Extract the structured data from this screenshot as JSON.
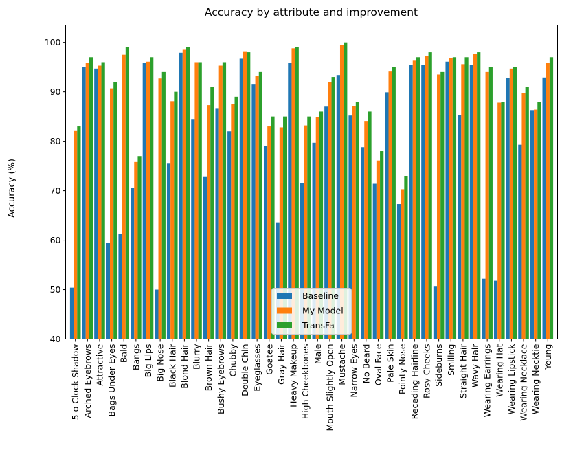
{
  "chart_data": {
    "type": "bar",
    "title": "Accuracy by attribute and improvement",
    "xlabel": "",
    "ylabel": "Accuracy (%)",
    "ylim": [
      40,
      103.5
    ],
    "yticks": [
      40,
      50,
      60,
      70,
      80,
      90,
      100
    ],
    "grid": false,
    "legend": {
      "placement": "lower-center"
    },
    "categories": [
      "5 o Clock Shadow",
      "Arched Eyebrows",
      "Attractive",
      "Bags Under Eyes",
      "Bald",
      "Bangs",
      "Big Lips",
      "Big Nose",
      "Black Hair",
      "Blond Hair",
      "Blurry",
      "Brown Hair",
      "Bushy Eyebrows",
      "Chubby",
      "Double Chin",
      "Eyeglasses",
      "Goatee",
      "Gray Hair",
      "Heavy Makeup",
      "High Cheekbones",
      "Male",
      "Mouth Slightly Open",
      "Mustache",
      "Narrow Eyes",
      "No Beard",
      "Oval Face",
      "Pale Skin",
      "Pointy Nose",
      "Receding Hairline",
      "Rosy Cheeks",
      "Sideburns",
      "Smiling",
      "Straight Hair",
      "Wavy Hair",
      "Wearing Earrings",
      "Wearing Hat",
      "Wearing Lipstick",
      "Wearing Necklace",
      "Wearing Necktie",
      "Young"
    ],
    "series": [
      {
        "name": "Baseline",
        "color": "#1f77b4",
        "values": [
          50.4,
          95.0,
          94.7,
          59.5,
          61.3,
          70.5,
          95.8,
          50.0,
          75.6,
          97.9,
          84.5,
          72.9,
          86.7,
          82.0,
          96.7,
          91.6,
          79.0,
          63.6,
          95.8,
          71.5,
          79.7,
          87.0,
          93.4,
          85.2,
          78.8,
          71.4,
          89.9,
          67.3,
          95.4,
          95.4,
          50.6,
          96.1,
          85.3,
          95.4,
          52.2,
          51.8,
          92.8,
          79.3,
          86.3,
          92.9
        ]
      },
      {
        "name": "My Model",
        "color": "#ff7f0e",
        "values": [
          82.2,
          95.9,
          95.3,
          90.7,
          97.5,
          75.8,
          96.1,
          92.7,
          88.1,
          98.5,
          96.0,
          87.3,
          95.3,
          87.5,
          98.2,
          93.2,
          83.0,
          82.8,
          98.8,
          83.2,
          84.9,
          91.9,
          99.5,
          87.1,
          84.1,
          76.1,
          94.1,
          70.3,
          96.3,
          97.3,
          93.5,
          96.9,
          95.6,
          97.6,
          94.0,
          87.8,
          94.7,
          89.8,
          86.4,
          95.8
        ]
      },
      {
        "name": "TransFa",
        "color": "#2ca02c",
        "values": [
          83.0,
          97.0,
          96.0,
          92.0,
          99.0,
          77.0,
          97.0,
          94.0,
          90.0,
          99.0,
          96.0,
          91.0,
          96.0,
          89.0,
          98.0,
          94.0,
          85.0,
          85.0,
          99.0,
          85.0,
          86.0,
          93.0,
          100.0,
          88.0,
          86.0,
          78.0,
          95.0,
          73.0,
          97.0,
          98.0,
          94.0,
          97.0,
          97.0,
          98.0,
          95.0,
          88.0,
          95.0,
          91.0,
          88.0,
          97.0
        ]
      }
    ]
  }
}
